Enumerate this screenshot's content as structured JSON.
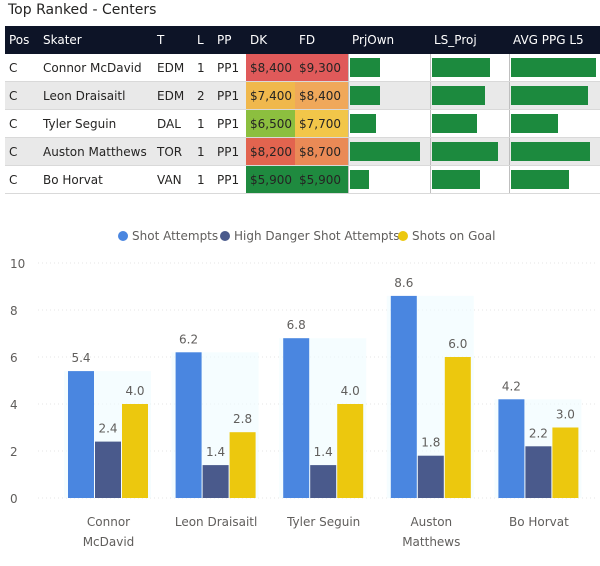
{
  "title": "Top Ranked - Centers",
  "table": {
    "columns": [
      "Pos",
      "Skater",
      "T",
      "L",
      "PP",
      "DK",
      "FD",
      "PrjOwn",
      "LS_Proj",
      "AVG PPG L5"
    ],
    "rows": [
      {
        "pos": "C",
        "skater": "Connor McDavid",
        "team": "EDM",
        "line": "1",
        "pp": "PP1",
        "dk": "$8,400",
        "fd": "$9,300",
        "dk_color": "#e05a5a",
        "fd_color": "#e05a5a",
        "prjown": 0.37,
        "ls_proj": 0.75,
        "avg_ppg": 0.95
      },
      {
        "pos": "C",
        "skater": "Leon Draisaitl",
        "team": "EDM",
        "line": "2",
        "pp": "PP1",
        "dk": "$7,400",
        "fd": "$8,400",
        "dk_color": "#f0b84c",
        "fd_color": "#f0a85a",
        "prjown": 0.37,
        "ls_proj": 0.69,
        "avg_ppg": 0.87
      },
      {
        "pos": "C",
        "skater": "Tyler Seguin",
        "team": "DAL",
        "line": "1",
        "pp": "PP1",
        "dk": "$6,500",
        "fd": "$7,700",
        "dk_color": "#8cbf3f",
        "fd_color": "#f2c649",
        "prjown": 0.32,
        "ls_proj": 0.58,
        "avg_ppg": 0.53
      },
      {
        "pos": "C",
        "skater": "Auston Matthews",
        "team": "TOR",
        "line": "1",
        "pp": "PP1",
        "dk": "$8,200",
        "fd": "$8,700",
        "dk_color": "#e2644f",
        "fd_color": "#ea8a56",
        "prjown": 0.87,
        "ls_proj": 0.86,
        "avg_ppg": 0.89
      },
      {
        "pos": "C",
        "skater": "Bo Horvat",
        "team": "VAN",
        "line": "1",
        "pp": "PP1",
        "dk": "$5,900",
        "fd": "$5,900",
        "dk_color": "#1f8a3f",
        "fd_color": "#1f8a3f",
        "prjown": 0.24,
        "ls_proj": 0.62,
        "avg_ppg": 0.65
      }
    ]
  },
  "chart_data": {
    "type": "bar",
    "title": "",
    "xlabel": "",
    "ylabel": "",
    "ylim": [
      0,
      10
    ],
    "yticks": [
      "0",
      "2",
      "4",
      "6",
      "8",
      "10"
    ],
    "categories": [
      "Connor McDavid",
      "Leon Draisaitl",
      "Tyler Seguin",
      "Auston Matthews",
      "Bo Horvat"
    ],
    "category_lines": [
      [
        "Connor",
        "McDavid"
      ],
      [
        "Leon Draisaitl"
      ],
      [
        "Tyler Seguin"
      ],
      [
        "Auston",
        "Matthews"
      ],
      [
        "Bo Horvat"
      ]
    ],
    "legend_position": "top-center",
    "series": [
      {
        "name": "Shot Attempts",
        "color": "#4a86e0",
        "values": [
          5.4,
          6.2,
          6.8,
          8.6,
          4.2
        ],
        "labels": [
          "5.4",
          "6.2",
          "6.8",
          "8.6",
          "4.2"
        ]
      },
      {
        "name": "High Danger Shot Attempts",
        "color": "#4a5a8c",
        "values": [
          2.4,
          1.4,
          1.4,
          1.8,
          2.2
        ],
        "labels": [
          "2.4",
          "1.4",
          "1.4",
          "1.8",
          "2.2"
        ]
      },
      {
        "name": "Shots on Goal",
        "color": "#ecc80e",
        "values": [
          4.0,
          2.8,
          4.0,
          6.0,
          3.0
        ],
        "labels": [
          "4.0",
          "2.8",
          "4.0",
          "6.0",
          "3.0"
        ]
      }
    ]
  }
}
